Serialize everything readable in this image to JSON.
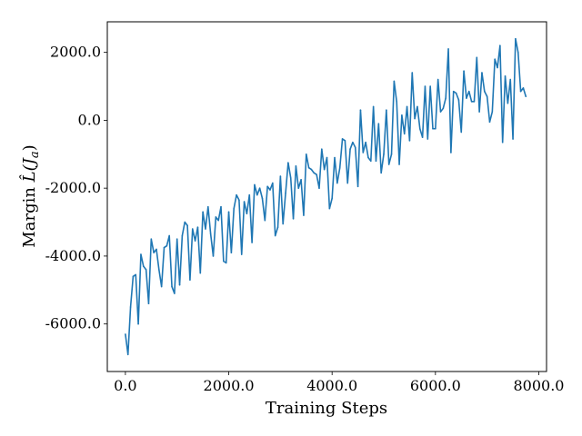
{
  "chart_data": {
    "type": "line",
    "title": "",
    "xlabel": "Training Steps",
    "ylabel_text": "Margin",
    "ylabel_math": "L̂(J",
    "ylabel_math_sub": "a",
    "ylabel_math_close": ")",
    "xlim": [
      -350,
      8150
    ],
    "ylim": [
      -7400,
      2900
    ],
    "xticks": [
      0,
      2000,
      4000,
      6000,
      8000
    ],
    "xtick_labels": [
      "0.0",
      "2000.0",
      "4000.0",
      "6000.0",
      "8000.0"
    ],
    "yticks": [
      -6000,
      -4000,
      -2000,
      0,
      2000
    ],
    "ytick_labels": [
      "-6000.0",
      "-4000.0",
      "-2000.0",
      "0.0",
      "2000.0"
    ],
    "grid": false,
    "line_color": "#1f77b4",
    "series": [
      {
        "x": [
          0,
          50,
          100,
          150,
          200,
          250,
          300,
          350,
          400,
          450,
          500,
          550,
          600,
          650,
          700,
          750,
          800,
          850,
          900,
          950,
          1000,
          1050,
          1100,
          1150,
          1200,
          1250,
          1300,
          1350,
          1400,
          1450,
          1500,
          1550,
          1600,
          1650,
          1700,
          1750,
          1800,
          1850,
          1900,
          1950,
          2000,
          2050,
          2100,
          2150,
          2200,
          2250,
          2300,
          2350,
          2400,
          2450,
          2500,
          2550,
          2600,
          2650,
          2700,
          2750,
          2800,
          2850,
          2900,
          2950,
          3000,
          3050,
          3100,
          3150,
          3200,
          3250,
          3300,
          3350,
          3400,
          3450,
          3500,
          3550,
          3600,
          3650,
          3700,
          3750,
          3800,
          3850,
          3900,
          3950,
          4000,
          4050,
          4100,
          4150,
          4200,
          4250,
          4300,
          4350,
          4400,
          4450,
          4500,
          4550,
          4600,
          4650,
          4700,
          4750,
          4800,
          4850,
          4900,
          4950,
          5000,
          5050,
          5100,
          5150,
          5200,
          5250,
          5300,
          5350,
          5400,
          5450,
          5500,
          5550,
          5600,
          5650,
          5700,
          5750,
          5800,
          5850,
          5900,
          5950,
          6000,
          6050,
          6100,
          6150,
          6200,
          6250,
          6300,
          6350,
          6400,
          6450,
          6500,
          6550,
          6600,
          6650,
          6700,
          6750,
          6800,
          6850,
          6900,
          6950,
          7000,
          7050,
          7100,
          7150,
          7200,
          7250,
          7300,
          7350,
          7400,
          7450,
          7500,
          7550,
          7600,
          7650,
          7700,
          7750
        ],
        "y": [
          -6300,
          -6900,
          -5500,
          -4600,
          -4550,
          -6000,
          -3950,
          -4300,
          -4400,
          -5400,
          -3500,
          -3900,
          -3800,
          -4400,
          -4900,
          -3750,
          -3700,
          -3400,
          -4900,
          -5100,
          -3500,
          -4850,
          -3400,
          -3000,
          -3100,
          -4700,
          -3200,
          -3550,
          -3150,
          -4500,
          -2700,
          -3200,
          -2550,
          -3350,
          -4000,
          -2850,
          -2950,
          -2550,
          -4150,
          -4200,
          -2700,
          -3900,
          -2600,
          -2200,
          -2350,
          -3950,
          -2400,
          -2750,
          -2200,
          -3600,
          -1900,
          -2200,
          -2000,
          -2300,
          -2950,
          -1950,
          -2050,
          -1850,
          -3400,
          -3150,
          -1650,
          -3050,
          -2150,
          -1250,
          -1700,
          -2900,
          -1350,
          -2000,
          -1750,
          -2800,
          -1000,
          -1400,
          -1450,
          -1550,
          -1600,
          -2000,
          -850,
          -1450,
          -1100,
          -2600,
          -2300,
          -1100,
          -1850,
          -1400,
          -550,
          -600,
          -1850,
          -850,
          -650,
          -800,
          -1950,
          300,
          -950,
          -650,
          -1100,
          -1200,
          400,
          -1200,
          -100,
          -1550,
          -1000,
          300,
          -1300,
          -1000,
          1150,
          550,
          -1300,
          150,
          -400,
          400,
          -600,
          1400,
          50,
          400,
          -250,
          -500,
          1000,
          -550,
          1000,
          -250,
          -250,
          1200,
          250,
          350,
          650,
          2100,
          -950,
          850,
          800,
          600,
          -350,
          1450,
          650,
          850,
          550,
          550,
          1850,
          250,
          1400,
          850,
          700,
          -50,
          250,
          1800,
          1550,
          2200,
          -650,
          1300,
          500,
          1200,
          -550,
          2400,
          2000,
          850,
          950,
          700
        ]
      }
    ]
  }
}
